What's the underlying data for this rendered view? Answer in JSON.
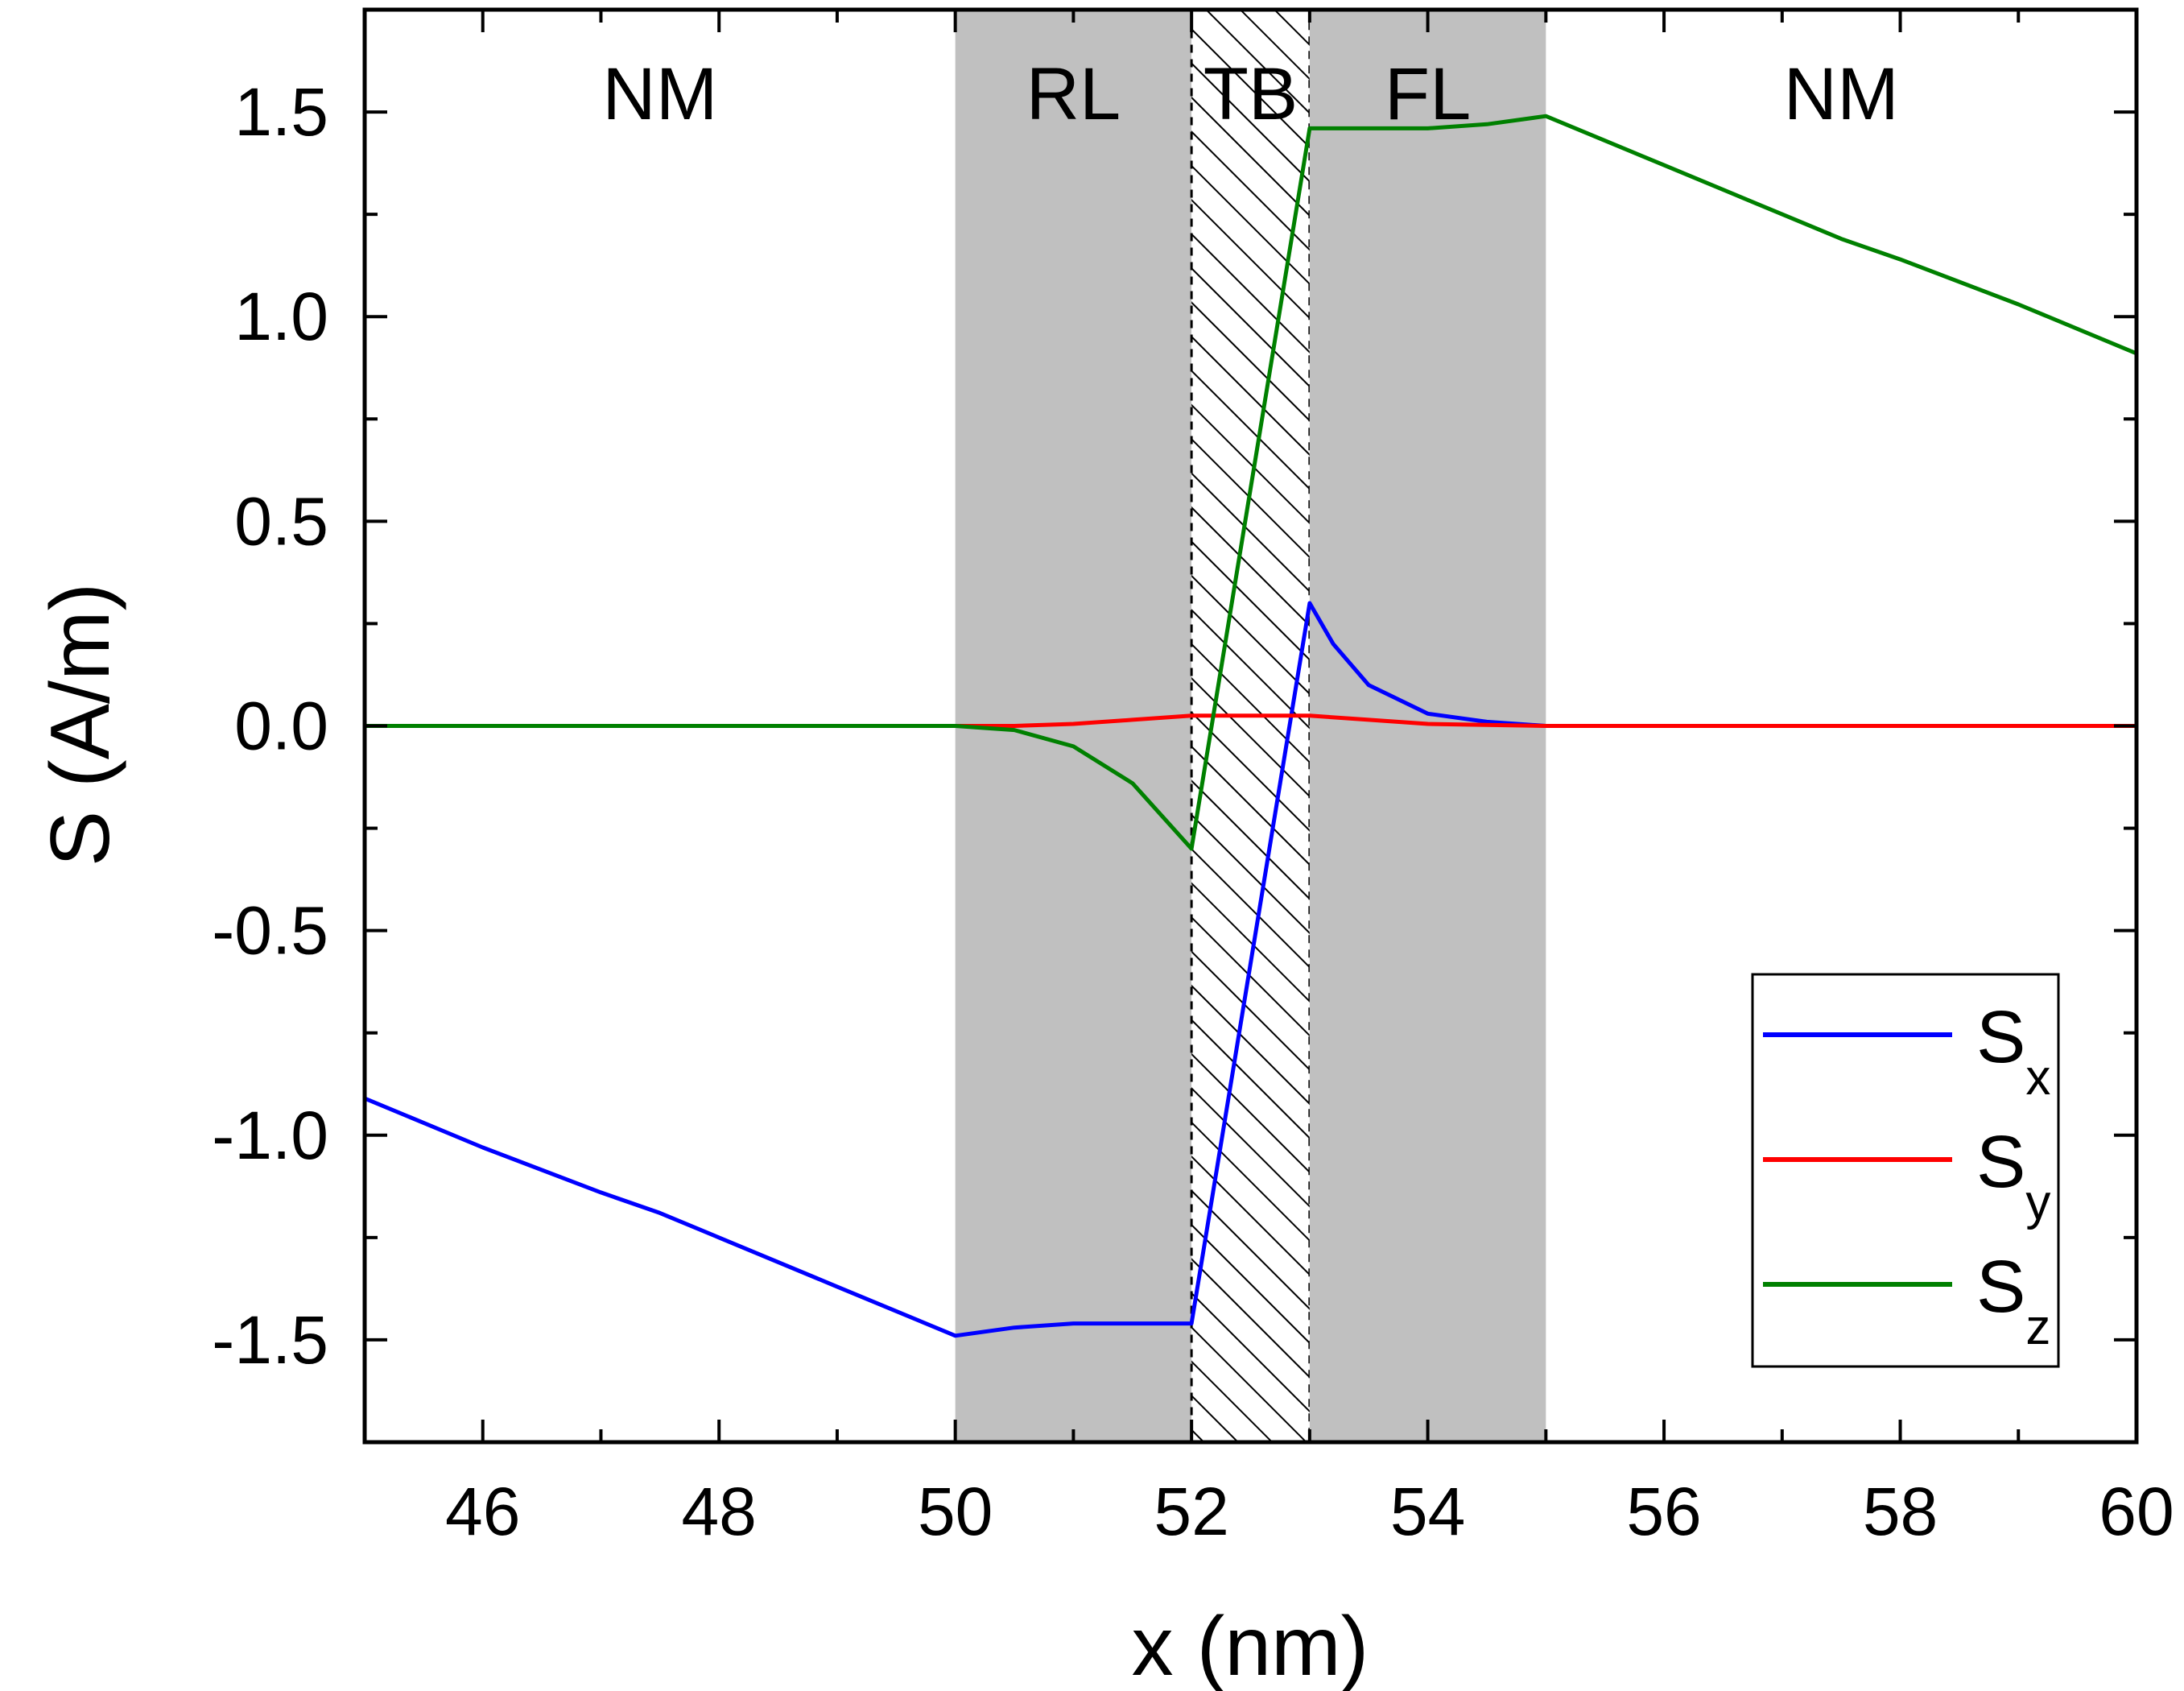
{
  "chart_data": {
    "type": "line",
    "xlabel": "x (nm)",
    "ylabel": "S (A/m)",
    "xlim": [
      45,
      60
    ],
    "ylim": [
      -1.75,
      1.75
    ],
    "x_ticks": [
      46,
      48,
      50,
      52,
      54,
      56,
      58,
      60
    ],
    "x_tick_labels": [
      "46",
      "48",
      "50",
      "52",
      "54",
      "56",
      "58",
      "60"
    ],
    "y_ticks": [
      -1.5,
      -1.0,
      -0.5,
      0.0,
      0.5,
      1.0,
      1.5
    ],
    "y_tick_labels": [
      "-1.5",
      "-1.0",
      "-0.5",
      "0.0",
      "0.5",
      "1.0",
      "1.5"
    ],
    "grid": false,
    "legend_position": "bottom-right",
    "regions": [
      {
        "label": "NM",
        "x0": 45,
        "x1": 50,
        "style": "none"
      },
      {
        "label": "RL",
        "x0": 50,
        "x1": 52,
        "style": "gray"
      },
      {
        "label": "TB",
        "x0": 52,
        "x1": 53,
        "style": "hatched"
      },
      {
        "label": "FL",
        "x0": 53,
        "x1": 55,
        "style": "gray"
      },
      {
        "label": "NM",
        "x0": 55,
        "x1": 60,
        "style": "none"
      }
    ],
    "series": [
      {
        "name": "S",
        "subscript": "x",
        "color": "#0000ff",
        "points": [
          [
            45,
            -0.91
          ],
          [
            46,
            -1.03
          ],
          [
            47,
            -1.14
          ],
          [
            47.5,
            -1.19
          ],
          [
            48,
            -1.25
          ],
          [
            49,
            -1.37
          ],
          [
            50,
            -1.49
          ],
          [
            50.5,
            -1.47
          ],
          [
            51,
            -1.46
          ],
          [
            51.5,
            -1.46
          ],
          [
            52,
            -1.46
          ],
          [
            53,
            0.3
          ],
          [
            53.2,
            0.2
          ],
          [
            53.5,
            0.1
          ],
          [
            54,
            0.03
          ],
          [
            54.5,
            0.01
          ],
          [
            55,
            0.0
          ],
          [
            60,
            0.0
          ]
        ]
      },
      {
        "name": "S",
        "subscript": "y",
        "color": "#ff0000",
        "points": [
          [
            45,
            0.0
          ],
          [
            50,
            0.0
          ],
          [
            50.5,
            0.0
          ],
          [
            51,
            0.005
          ],
          [
            51.5,
            0.015
          ],
          [
            52,
            0.025
          ],
          [
            52.5,
            0.025
          ],
          [
            53,
            0.025
          ],
          [
            53.5,
            0.015
          ],
          [
            54,
            0.005
          ],
          [
            55,
            0.0
          ],
          [
            60,
            0.0
          ]
        ]
      },
      {
        "name": "S",
        "subscript": "z",
        "color": "#008000",
        "points": [
          [
            45,
            0.0
          ],
          [
            50,
            0.0
          ],
          [
            50.5,
            -0.01
          ],
          [
            51,
            -0.05
          ],
          [
            51.5,
            -0.14
          ],
          [
            52,
            -0.3
          ],
          [
            53,
            1.46
          ],
          [
            53.5,
            1.46
          ],
          [
            54,
            1.46
          ],
          [
            54.5,
            1.47
          ],
          [
            55,
            1.49
          ],
          [
            56,
            1.37
          ],
          [
            57,
            1.25
          ],
          [
            57.5,
            1.19
          ],
          [
            58,
            1.14
          ],
          [
            59,
            1.03
          ],
          [
            60,
            0.91
          ]
        ]
      }
    ]
  }
}
